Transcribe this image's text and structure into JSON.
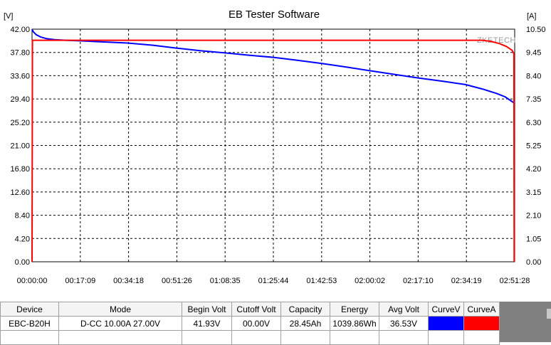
{
  "chart_data": {
    "type": "line",
    "title": "EB Tester Software",
    "watermark": "ZKETECH",
    "y_left_unit": "[V]",
    "y_right_unit": "[A]",
    "x_tick_labels": [
      "00:00:00",
      "00:17:09",
      "00:34:18",
      "00:51:26",
      "01:08:35",
      "01:25:44",
      "01:42:53",
      "02:00:02",
      "02:17:10",
      "02:34:19",
      "02:51:28"
    ],
    "y_left_ticks": [
      "0.00",
      "4.20",
      "8.40",
      "12.60",
      "16.80",
      "21.00",
      "25.20",
      "29.40",
      "33.60",
      "37.80",
      "42.00"
    ],
    "y_right_ticks": [
      "0.00",
      "1.05",
      "2.10",
      "3.15",
      "4.20",
      "5.25",
      "6.30",
      "7.35",
      "8.40",
      "9.45",
      "10.50"
    ],
    "y_left_range": [
      0,
      42
    ],
    "y_right_range": [
      0,
      10.5
    ],
    "x_range_minutes": [
      0,
      171.47
    ],
    "grid": true,
    "series": [
      {
        "name": "CurveV",
        "color": "#0000ff",
        "axis": "left",
        "x_minutes": [
          0,
          0.5,
          1.5,
          3,
          5,
          8,
          12,
          17,
          25,
          34,
          43,
          51,
          60,
          69,
          77,
          86,
          94,
          103,
          111,
          120,
          129,
          137,
          146,
          154,
          160,
          165,
          168,
          171.2
        ],
        "values": [
          41.93,
          41.5,
          41.0,
          40.6,
          40.3,
          40.1,
          40.0,
          39.9,
          39.7,
          39.5,
          39.1,
          38.6,
          38.1,
          37.7,
          37.3,
          36.9,
          36.4,
          35.8,
          35.2,
          34.5,
          33.8,
          33.2,
          32.6,
          32.0,
          31.2,
          30.4,
          29.8,
          28.7
        ]
      },
      {
        "name": "CurveA",
        "color": "#ff0000",
        "axis": "right",
        "x_minutes": [
          0,
          0.15,
          0.4,
          160,
          163,
          166,
          168.5,
          170.5,
          171.2,
          171.3
        ],
        "values": [
          0,
          10.0,
          10.0,
          10.0,
          9.95,
          9.85,
          9.72,
          9.55,
          9.4,
          0
        ]
      }
    ]
  },
  "summary": {
    "headers": [
      "Device",
      "Mode",
      "Begin Volt",
      "Cutoff Volt",
      "Capacity",
      "Energy",
      "Avg Volt",
      "CurveV",
      "CurveA"
    ],
    "values": {
      "device": "EBC-B20H",
      "mode": "D-CC  10.00A  27.00V",
      "begin_volt": "41.93V",
      "cutoff_volt": "00.00V",
      "capacity": "28.45Ah",
      "energy": "1039.86Wh",
      "avg_volt": "36.53V"
    },
    "curve_colors": {
      "curve_v": "#0000ff",
      "curve_a": "#ff0000"
    }
  }
}
